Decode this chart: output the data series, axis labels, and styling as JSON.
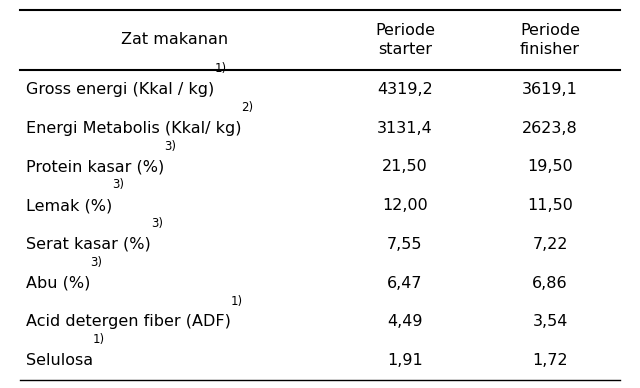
{
  "header_col": "Zat makanan",
  "header_col2": "Periode\nstarter",
  "header_col3": "Periode\nfinisher",
  "rows": [
    {
      "main": "Gross energi (Kkal / kg)",
      "sup": "1)",
      "v1": "4319,2",
      "v2": "3619,1"
    },
    {
      "main": "Energi Metabolis (Kkal/ kg)",
      "sup": "2)",
      "v1": "3131,4",
      "v2": "2623,8"
    },
    {
      "main": "Protein kasar (%)",
      "sup": "3)",
      "v1": "21,50",
      "v2": "19,50"
    },
    {
      "main": "Lemak (%)",
      "sup": "3)",
      "v1": "12,00",
      "v2": "11,50"
    },
    {
      "main": "Serat kasar (%)",
      "sup": "3)",
      "v1": "7,55",
      "v2": "7,22"
    },
    {
      "main": "Abu (%)",
      "sup": "3)",
      "v1": "6,47",
      "v2": "6,86"
    },
    {
      "main": "Acid detergen fiber (ADF)",
      "sup": "1)",
      "v1": "4,49",
      "v2": "3,54"
    },
    {
      "main": "Selulosa",
      "sup": "1)",
      "v1": "1,91",
      "v2": "1,72"
    }
  ],
  "bg_color": "#ffffff",
  "text_color": "#000000",
  "font_size": 11.5,
  "header_font_size": 11.5,
  "figsize": [
    6.4,
    3.88
  ]
}
